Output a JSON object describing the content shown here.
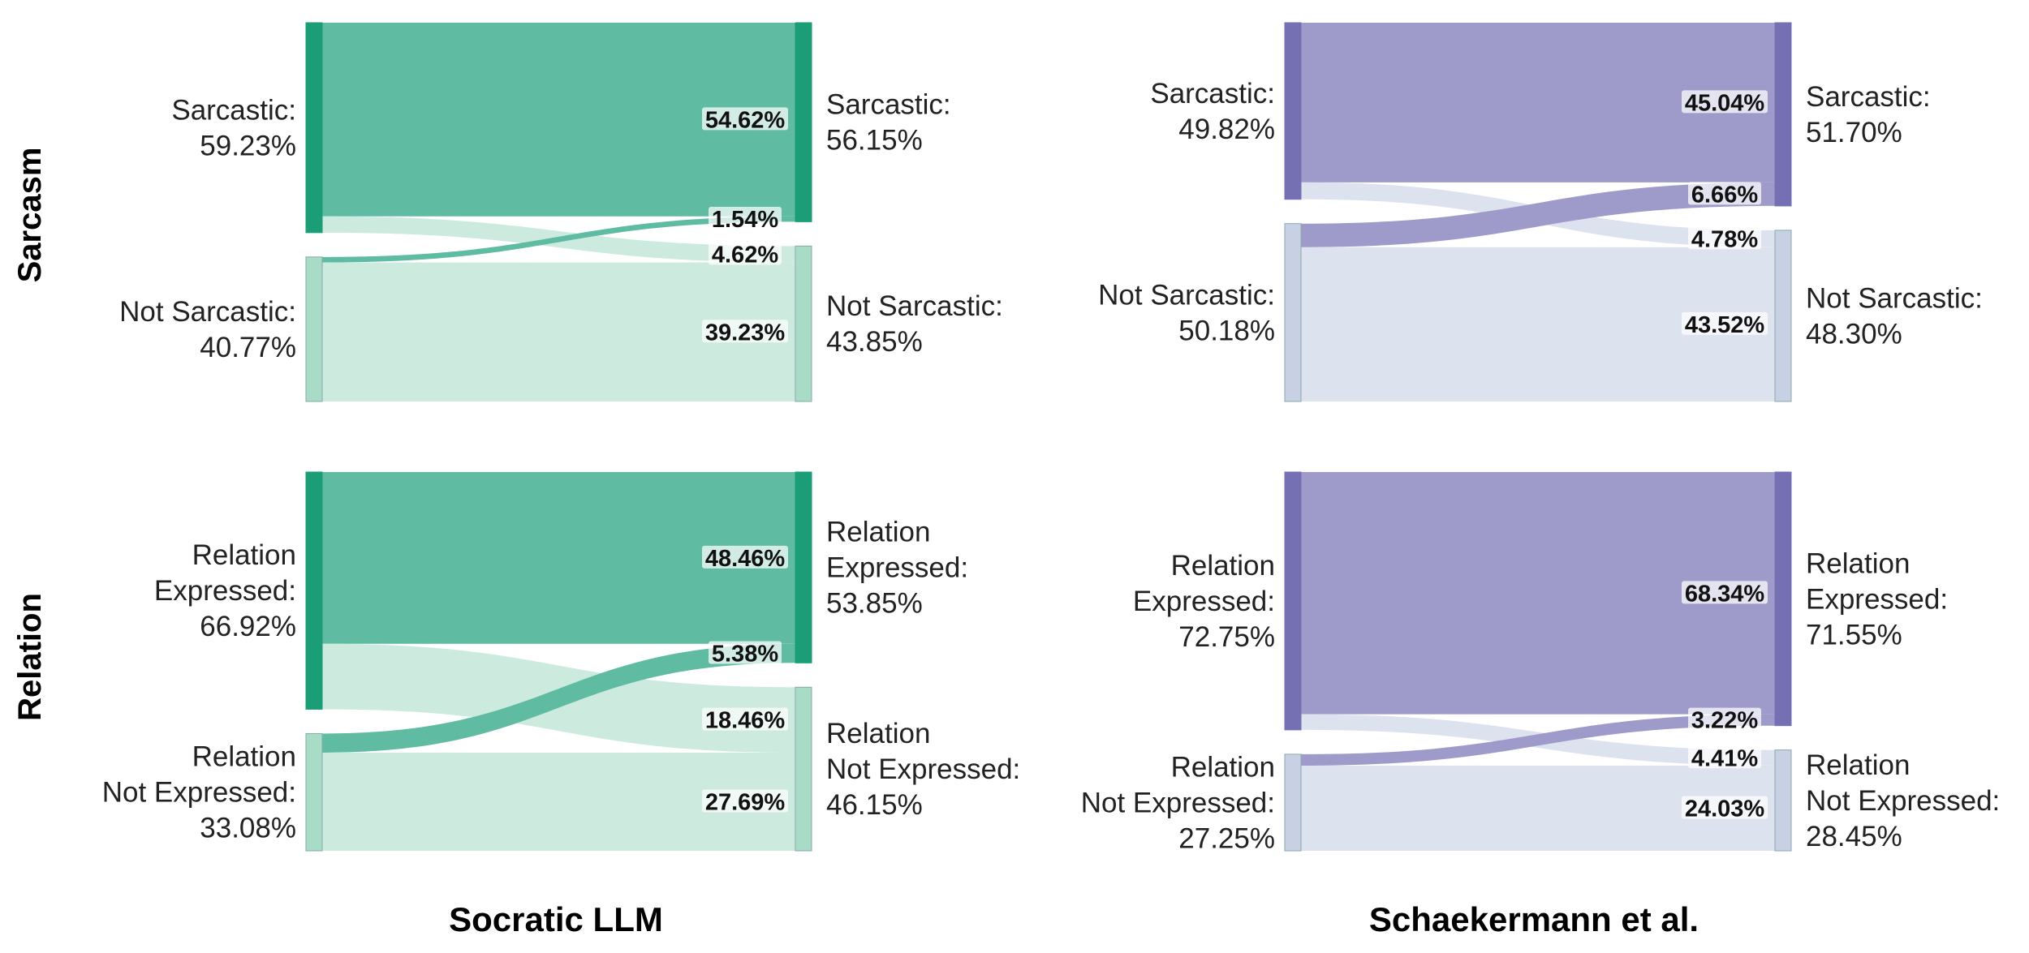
{
  "columns": [
    "Socratic LLM",
    "Schaekermann et al."
  ],
  "rows": [
    "Sarcasm",
    "Relation"
  ],
  "colors": {
    "teal_dark": "#1b9e77",
    "teal_flow": "#5fbba1",
    "teal_light_node": "#a8dcc6",
    "teal_light_flow": "#cdeadf",
    "purple_dark": "#7570b3",
    "purple_flow": "#9e9bca",
    "purple_light_node": "#c8d0e3",
    "purple_light_flow": "#dde2ef"
  },
  "chart_data": [
    {
      "type": "sankey",
      "title": "Sarcasm — Socratic LLM",
      "palette": "teal",
      "left_nodes": [
        {
          "name": "Sarcastic",
          "lines": [
            "Sarcastic:",
            "59.23%"
          ],
          "value": 59.23
        },
        {
          "name": "Not Sarcastic",
          "lines": [
            "Not Sarcastic:",
            "40.77%"
          ],
          "value": 40.77
        }
      ],
      "right_nodes": [
        {
          "name": "Sarcastic",
          "lines": [
            "Sarcastic:",
            "56.15%"
          ],
          "value": 56.15
        },
        {
          "name": "Not Sarcastic",
          "lines": [
            "Not Sarcastic:",
            "43.85%"
          ],
          "value": 43.85
        }
      ],
      "flows": [
        {
          "source": 0,
          "target": 0,
          "value": 54.62,
          "label": "54.62%"
        },
        {
          "source": 0,
          "target": 1,
          "value": 4.62,
          "label": "4.62%"
        },
        {
          "source": 1,
          "target": 0,
          "value": 1.54,
          "label": "1.54%"
        },
        {
          "source": 1,
          "target": 1,
          "value": 39.23,
          "label": "39.23%"
        }
      ]
    },
    {
      "type": "sankey",
      "title": "Sarcasm — Schaekermann et al.",
      "palette": "purple",
      "left_nodes": [
        {
          "name": "Sarcastic",
          "lines": [
            "Sarcastic:",
            "49.82%"
          ],
          "value": 49.82
        },
        {
          "name": "Not Sarcastic",
          "lines": [
            "Not Sarcastic:",
            "50.18%"
          ],
          "value": 50.18
        }
      ],
      "right_nodes": [
        {
          "name": "Sarcastic",
          "lines": [
            "Sarcastic:",
            "51.70%"
          ],
          "value": 51.7
        },
        {
          "name": "Not Sarcastic",
          "lines": [
            "Not Sarcastic:",
            "48.30%"
          ],
          "value": 48.3
        }
      ],
      "flows": [
        {
          "source": 0,
          "target": 0,
          "value": 45.04,
          "label": "45.04%"
        },
        {
          "source": 0,
          "target": 1,
          "value": 4.78,
          "label": "4.78%"
        },
        {
          "source": 1,
          "target": 0,
          "value": 6.66,
          "label": "6.66%"
        },
        {
          "source": 1,
          "target": 1,
          "value": 43.52,
          "label": "43.52%"
        }
      ]
    },
    {
      "type": "sankey",
      "title": "Relation — Socratic LLM",
      "palette": "teal",
      "left_nodes": [
        {
          "name": "Relation Expressed",
          "lines": [
            "Relation",
            "Expressed:",
            "66.92%"
          ],
          "value": 66.92
        },
        {
          "name": "Relation Not Expressed",
          "lines": [
            "Relation",
            "Not Expressed:",
            "33.08%"
          ],
          "value": 33.08
        }
      ],
      "right_nodes": [
        {
          "name": "Relation Expressed",
          "lines": [
            "Relation",
            "Expressed:",
            "53.85%"
          ],
          "value": 53.85
        },
        {
          "name": "Relation Not Expressed",
          "lines": [
            "Relation",
            "Not Expressed:",
            "46.15%"
          ],
          "value": 46.15
        }
      ],
      "flows": [
        {
          "source": 0,
          "target": 0,
          "value": 48.46,
          "label": "48.46%"
        },
        {
          "source": 0,
          "target": 1,
          "value": 18.46,
          "label": "18.46%"
        },
        {
          "source": 1,
          "target": 0,
          "value": 5.38,
          "label": "5.38%"
        },
        {
          "source": 1,
          "target": 1,
          "value": 27.69,
          "label": "27.69%"
        }
      ]
    },
    {
      "type": "sankey",
      "title": "Relation — Schaekermann et al.",
      "palette": "purple",
      "left_nodes": [
        {
          "name": "Relation Expressed",
          "lines": [
            "Relation",
            "Expressed:",
            "72.75%"
          ],
          "value": 72.75
        },
        {
          "name": "Relation Not Expressed",
          "lines": [
            "Relation",
            "Not Expressed:",
            "27.25%"
          ],
          "value": 27.25
        }
      ],
      "right_nodes": [
        {
          "name": "Relation Expressed",
          "lines": [
            "Relation",
            "Expressed:",
            "71.55%"
          ],
          "value": 71.55
        },
        {
          "name": "Relation Not Expressed",
          "lines": [
            "Relation",
            "Not Expressed:",
            "28.45%"
          ],
          "value": 28.45
        }
      ],
      "flows": [
        {
          "source": 0,
          "target": 0,
          "value": 68.34,
          "label": "68.34%"
        },
        {
          "source": 0,
          "target": 1,
          "value": 4.41,
          "label": "4.41%"
        },
        {
          "source": 1,
          "target": 0,
          "value": 3.22,
          "label": "3.22%"
        },
        {
          "source": 1,
          "target": 1,
          "value": 24.03,
          "label": "24.03%"
        }
      ]
    }
  ]
}
